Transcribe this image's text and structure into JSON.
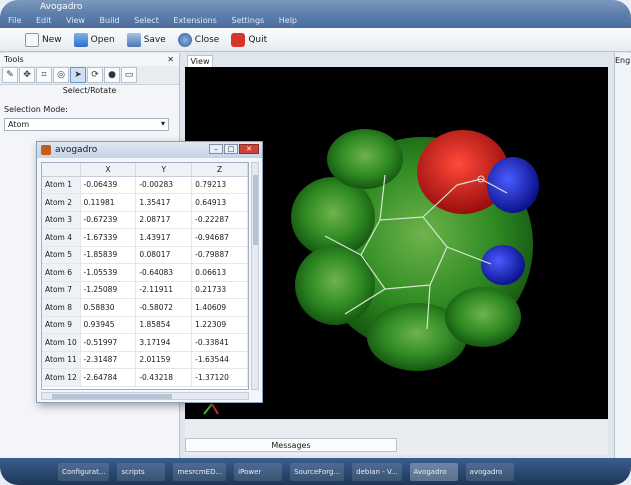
{
  "window": {
    "title": "Avogadro",
    "menus": [
      "File",
      "Edit",
      "View",
      "Build",
      "Select",
      "Extensions",
      "Settings",
      "Help"
    ]
  },
  "toolbar": {
    "buttons": [
      {
        "label": "New",
        "icon": "new-document-icon",
        "color": "#f4f6f8"
      },
      {
        "label": "Open",
        "icon": "open-folder-icon",
        "color": "#3d7fd1"
      },
      {
        "label": "Save",
        "icon": "save-disk-icon",
        "color": "#5f86c4"
      },
      {
        "label": "Close",
        "icon": "close-circle-icon",
        "color": "#4a78b8"
      },
      {
        "label": "Quit",
        "icon": "quit-icon",
        "color": "#d9342b"
      }
    ]
  },
  "tools": {
    "header": "Tools",
    "current_tool": "Select/Rotate",
    "selection_mode_label": "Selection Mode:",
    "selection_mode_value": "Atom",
    "icons": [
      "draw-icon",
      "navigate-icon",
      "bond-centric-icon",
      "manipulate-icon",
      "select-rotate-icon",
      "auto-rotate-icon",
      "auto-optimize-icon",
      "measure-icon"
    ]
  },
  "view": {
    "tab": "View 1",
    "messages_tab": "Messages"
  },
  "right_panel": {
    "label": "Eng"
  },
  "atom_table": {
    "title": "avogadro",
    "columns": [
      "X",
      "Y",
      "Z"
    ],
    "rows": [
      {
        "atom": "Atom 1",
        "x": "-0.06439",
        "y": "-0.00283",
        "z": "0.79213"
      },
      {
        "atom": "Atom 2",
        "x": "0.11981",
        "y": "1.35417",
        "z": "0.64913"
      },
      {
        "atom": "Atom 3",
        "x": "-0.67239",
        "y": "2.08717",
        "z": "-0.22287"
      },
      {
        "atom": "Atom 4",
        "x": "-1.67339",
        "y": "1.43917",
        "z": "-0.94687"
      },
      {
        "atom": "Atom 5",
        "x": "-1.85839",
        "y": "0.08017",
        "z": "-0.79887"
      },
      {
        "atom": "Atom 6",
        "x": "-1.05539",
        "y": "-0.64083",
        "z": "0.06613"
      },
      {
        "atom": "Atom 7",
        "x": "-1.25089",
        "y": "-2.11911",
        "z": "0.21733"
      },
      {
        "atom": "Atom 8",
        "x": "0.58830",
        "y": "-0.58072",
        "z": "1.40609"
      },
      {
        "atom": "Atom 9",
        "x": "0.93945",
        "y": "1.85854",
        "z": "1.22309"
      },
      {
        "atom": "Atom 10",
        "x": "-0.51997",
        "y": "3.17194",
        "z": "-0.33841"
      },
      {
        "atom": "Atom 11",
        "x": "-2.31487",
        "y": "2.01159",
        "z": "-1.63544"
      },
      {
        "atom": "Atom 12",
        "x": "-2.64784",
        "y": "-0.43218",
        "z": "-1.37120"
      }
    ]
  },
  "taskbar": {
    "items": [
      "Configurat...",
      "scripts",
      "mesrcmED...",
      "iPower",
      "SourceForg...",
      "debian - V...",
      "Avogadro",
      "avogadro"
    ]
  },
  "colors": {
    "viewport_bg": "#000000",
    "surface_green": "#3a9a2a",
    "surface_red": "#d11a1a",
    "surface_blue": "#1a2fd8"
  }
}
